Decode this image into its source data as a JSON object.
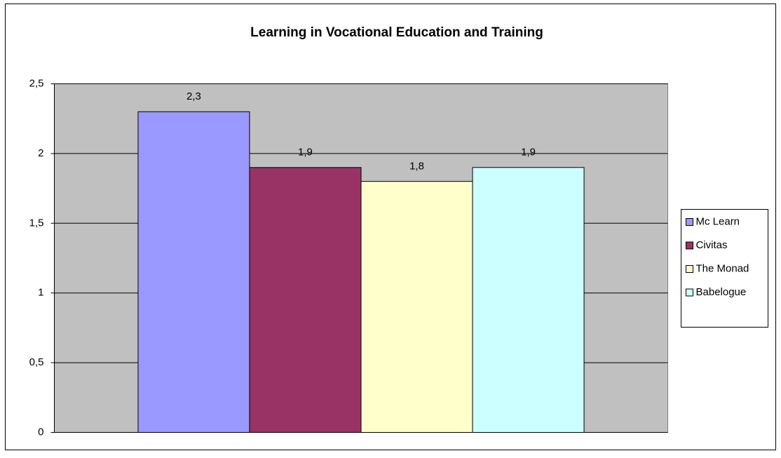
{
  "chart_data": {
    "type": "bar",
    "title": "Learning in Vocational Education and Training",
    "categories": [
      null
    ],
    "series": [
      {
        "name": "Mc Learn",
        "color": "#9999ff",
        "values": [
          2.3
        ],
        "value_labels": [
          "2,3"
        ]
      },
      {
        "name": "Civitas",
        "color": "#993366",
        "values": [
          1.9
        ],
        "value_labels": [
          "1,9"
        ]
      },
      {
        "name": "The Monad",
        "color": "#ffffcc",
        "values": [
          1.8
        ],
        "value_labels": [
          "1,8"
        ]
      },
      {
        "name": "Babelogue",
        "color": "#ccffff",
        "values": [
          1.9
        ],
        "value_labels": [
          "1,9"
        ]
      }
    ],
    "ylim": [
      0,
      2.5
    ],
    "yticks": [
      0,
      {
        "value": 0.5,
        "label": "0,5"
      },
      1,
      {
        "value": 1.5,
        "label": "1,5"
      },
      2,
      {
        "value": 2.5,
        "label": "2,5"
      }
    ],
    "grid": true,
    "plot_background": "#c0c0c0",
    "legend": "right"
  }
}
